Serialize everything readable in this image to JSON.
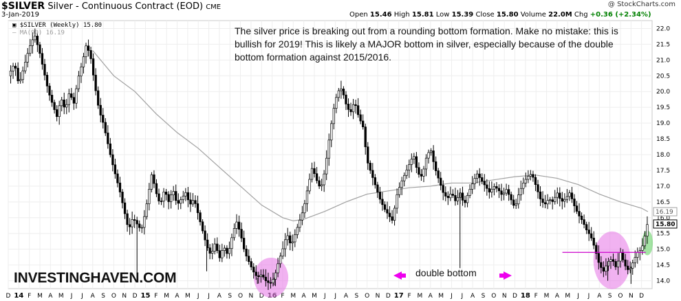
{
  "header": {
    "symbol": "$SILVER",
    "description": "Silver - Continuous Contract (EOD)",
    "exchange": "CME",
    "date": "3-Jan-2019",
    "credit": "@ StockCharts.com",
    "open_label": "Open",
    "open": "15.46",
    "high_label": "High",
    "high": "15.81",
    "low_label": "Low",
    "low": "15.39",
    "close_label": "Close",
    "close": "15.80",
    "volume_label": "Volume",
    "volume": "22.0M",
    "chg_label": "Chg",
    "chg": "+0.36 (+2.34%)"
  },
  "legend": {
    "price": "$SILVER (Weekly) 15.80",
    "ma": "MA(90) 16.19"
  },
  "annotation": "The silver price is breaking out from a rounding bottom formation. Make no mistake: this is bullish for 2019! This is likely a MAJOR bottom in silver, especially because of the double bottom formation against 2015/2016.",
  "double_bottom_label": "double bottom",
  "brand": "INVESTINGHAVEN.COM",
  "colors": {
    "candle": "#000000",
    "ma": "#a0a0a0",
    "highlight_magenta": "#e87ee8",
    "highlight_green": "#7ed87e",
    "arrow": "#ee00ee",
    "neckline": "#cc00cc"
  },
  "chart_data": {
    "type": "line",
    "frequency": "weekly",
    "ylim": [
      13.75,
      22.25
    ],
    "y_ticks": [
      "14.0",
      "14.5",
      "15.0",
      "15.5",
      "16.0",
      "16.5",
      "17.0",
      "17.5",
      "18.0",
      "18.5",
      "19.0",
      "19.5",
      "20.0",
      "20.5",
      "21.0",
      "21.5",
      "22.0"
    ],
    "last_price_label": "15.80",
    "ma_label": "16.19",
    "x_ticks": [
      {
        "label": "D",
        "t": 0
      },
      {
        "label": "14",
        "t": 1,
        "bold": true
      },
      {
        "label": "F",
        "t": 2
      },
      {
        "label": "M",
        "t": 3
      },
      {
        "label": "A",
        "t": 4
      },
      {
        "label": "M",
        "t": 5
      },
      {
        "label": "J",
        "t": 6
      },
      {
        "label": "J",
        "t": 7
      },
      {
        "label": "A",
        "t": 8
      },
      {
        "label": "S",
        "t": 9
      },
      {
        "label": "O",
        "t": 10
      },
      {
        "label": "N",
        "t": 11
      },
      {
        "label": "D",
        "t": 12
      },
      {
        "label": "15",
        "t": 13,
        "bold": true
      },
      {
        "label": "F",
        "t": 14
      },
      {
        "label": "M",
        "t": 15
      },
      {
        "label": "A",
        "t": 16
      },
      {
        "label": "M",
        "t": 17
      },
      {
        "label": "J",
        "t": 18
      },
      {
        "label": "J",
        "t": 19
      },
      {
        "label": "A",
        "t": 20
      },
      {
        "label": "S",
        "t": 21
      },
      {
        "label": "O",
        "t": 22
      },
      {
        "label": "N",
        "t": 23
      },
      {
        "label": "D",
        "t": 24
      },
      {
        "label": "16",
        "t": 25,
        "bold": true
      },
      {
        "label": "F",
        "t": 26
      },
      {
        "label": "M",
        "t": 27
      },
      {
        "label": "A",
        "t": 28
      },
      {
        "label": "M",
        "t": 29
      },
      {
        "label": "J",
        "t": 30
      },
      {
        "label": "J",
        "t": 31
      },
      {
        "label": "A",
        "t": 32
      },
      {
        "label": "S",
        "t": 33
      },
      {
        "label": "O",
        "t": 34
      },
      {
        "label": "N",
        "t": 35
      },
      {
        "label": "D",
        "t": 36
      },
      {
        "label": "17",
        "t": 37,
        "bold": true
      },
      {
        "label": "F",
        "t": 38
      },
      {
        "label": "M",
        "t": 39
      },
      {
        "label": "A",
        "t": 40
      },
      {
        "label": "M",
        "t": 41
      },
      {
        "label": "J",
        "t": 42
      },
      {
        "label": "J",
        "t": 43
      },
      {
        "label": "A",
        "t": 44
      },
      {
        "label": "S",
        "t": 45
      },
      {
        "label": "O",
        "t": 46
      },
      {
        "label": "N",
        "t": 47
      },
      {
        "label": "D",
        "t": 48
      },
      {
        "label": "18",
        "t": 49,
        "bold": true
      },
      {
        "label": "F",
        "t": 50
      },
      {
        "label": "M",
        "t": 51
      },
      {
        "label": "A",
        "t": 52
      },
      {
        "label": "M",
        "t": 53
      },
      {
        "label": "J",
        "t": 54
      },
      {
        "label": "J",
        "t": 55
      },
      {
        "label": "A",
        "t": 56
      },
      {
        "label": "S",
        "t": 57
      },
      {
        "label": "O",
        "t": 58
      },
      {
        "label": "N",
        "t": 59
      },
      {
        "label": "D",
        "t": 60
      }
    ],
    "price_path": [
      [
        0.0,
        20.5
      ],
      [
        0.6,
        20.9
      ],
      [
        1.0,
        20.2
      ],
      [
        1.5,
        20.8
      ],
      [
        2.0,
        21.4
      ],
      [
        2.5,
        21.8
      ],
      [
        3.0,
        21.2
      ],
      [
        3.4,
        20.6
      ],
      [
        3.8,
        20.0
      ],
      [
        4.2,
        19.6
      ],
      [
        4.6,
        19.2
      ],
      [
        5.0,
        19.8
      ],
      [
        5.4,
        19.4
      ],
      [
        5.8,
        20.0
      ],
      [
        6.2,
        19.6
      ],
      [
        6.6,
        20.4
      ],
      [
        7.0,
        20.9
      ],
      [
        7.4,
        21.5
      ],
      [
        7.8,
        21.1
      ],
      [
        8.2,
        20.2
      ],
      [
        8.6,
        19.4
      ],
      [
        9.0,
        19.0
      ],
      [
        9.4,
        18.4
      ],
      [
        9.8,
        17.8
      ],
      [
        10.2,
        17.3
      ],
      [
        10.6,
        16.8
      ],
      [
        11.0,
        16.2
      ],
      [
        11.4,
        15.6
      ],
      [
        11.8,
        16.0
      ],
      [
        12.2,
        15.8
      ],
      [
        12.6,
        15.6
      ],
      [
        13.0,
        16.2
      ],
      [
        13.4,
        17.0
      ],
      [
        13.6,
        17.4
      ],
      [
        14.0,
        16.8
      ],
      [
        14.4,
        16.4
      ],
      [
        14.8,
        16.9
      ],
      [
        15.2,
        16.5
      ],
      [
        15.6,
        16.9
      ],
      [
        16.0,
        16.4
      ],
      [
        16.4,
        16.6
      ],
      [
        16.8,
        16.8
      ],
      [
        17.2,
        16.4
      ],
      [
        17.6,
        16.6
      ],
      [
        18.0,
        16.1
      ],
      [
        18.4,
        15.6
      ],
      [
        18.8,
        15.1
      ],
      [
        19.2,
        14.8
      ],
      [
        19.6,
        15.2
      ],
      [
        20.0,
        14.7
      ],
      [
        20.4,
        15.1
      ],
      [
        20.8,
        14.8
      ],
      [
        21.2,
        15.4
      ],
      [
        21.6,
        15.9
      ],
      [
        22.0,
        15.5
      ],
      [
        22.4,
        14.9
      ],
      [
        22.8,
        14.6
      ],
      [
        23.2,
        14.3
      ],
      [
        23.6,
        14.1
      ],
      [
        24.0,
        14.2
      ],
      [
        24.4,
        14.0
      ],
      [
        24.8,
        13.9
      ],
      [
        25.2,
        14.1
      ],
      [
        25.6,
        14.6
      ],
      [
        26.0,
        15.0
      ],
      [
        26.4,
        15.5
      ],
      [
        26.8,
        15.1
      ],
      [
        27.2,
        15.5
      ],
      [
        27.6,
        15.9
      ],
      [
        28.0,
        16.3
      ],
      [
        28.4,
        17.0
      ],
      [
        28.8,
        17.6
      ],
      [
        29.2,
        17.2
      ],
      [
        29.6,
        16.9
      ],
      [
        30.0,
        17.5
      ],
      [
        30.4,
        18.5
      ],
      [
        30.8,
        19.4
      ],
      [
        31.2,
        20.0
      ],
      [
        31.6,
        20.1
      ],
      [
        32.0,
        19.6
      ],
      [
        32.4,
        19.3
      ],
      [
        32.8,
        19.7
      ],
      [
        33.2,
        19.2
      ],
      [
        33.6,
        18.9
      ],
      [
        34.0,
        17.8
      ],
      [
        34.4,
        17.4
      ],
      [
        34.8,
        17.0
      ],
      [
        35.2,
        16.6
      ],
      [
        35.6,
        16.3
      ],
      [
        36.0,
        16.1
      ],
      [
        36.4,
        15.9
      ],
      [
        36.8,
        16.7
      ],
      [
        37.2,
        17.1
      ],
      [
        37.6,
        17.4
      ],
      [
        38.0,
        17.7
      ],
      [
        38.4,
        18.0
      ],
      [
        38.8,
        17.4
      ],
      [
        39.2,
        17.3
      ],
      [
        39.6,
        17.9
      ],
      [
        40.0,
        18.2
      ],
      [
        40.4,
        17.6
      ],
      [
        40.8,
        17.2
      ],
      [
        41.2,
        16.8
      ],
      [
        41.6,
        16.6
      ],
      [
        42.0,
        16.8
      ],
      [
        42.4,
        16.5
      ],
      [
        42.8,
        16.8
      ],
      [
        43.2,
        16.4
      ],
      [
        43.6,
        16.8
      ],
      [
        44.0,
        17.1
      ],
      [
        44.4,
        17.4
      ],
      [
        44.8,
        17.2
      ],
      [
        45.2,
        17.0
      ],
      [
        45.6,
        16.8
      ],
      [
        46.0,
        17.0
      ],
      [
        46.4,
        16.9
      ],
      [
        46.8,
        16.7
      ],
      [
        47.2,
        16.9
      ],
      [
        47.6,
        16.6
      ],
      [
        48.0,
        16.3
      ],
      [
        48.4,
        16.8
      ],
      [
        48.8,
        17.1
      ],
      [
        49.2,
        17.3
      ],
      [
        49.6,
        17.4
      ],
      [
        50.0,
        17.0
      ],
      [
        50.4,
        16.6
      ],
      [
        50.8,
        16.4
      ],
      [
        51.2,
        16.6
      ],
      [
        51.6,
        16.5
      ],
      [
        52.0,
        16.8
      ],
      [
        52.4,
        16.5
      ],
      [
        52.8,
        16.6
      ],
      [
        53.2,
        16.8
      ],
      [
        53.6,
        16.4
      ],
      [
        54.0,
        16.1
      ],
      [
        54.4,
        15.9
      ],
      [
        54.8,
        15.6
      ],
      [
        55.2,
        15.4
      ],
      [
        55.6,
        15.0
      ],
      [
        56.0,
        14.5
      ],
      [
        56.4,
        14.3
      ],
      [
        56.8,
        14.6
      ],
      [
        57.2,
        14.7
      ],
      [
        57.6,
        14.4
      ],
      [
        58.0,
        14.9
      ],
      [
        58.4,
        14.5
      ],
      [
        58.8,
        14.3
      ],
      [
        59.2,
        14.6
      ],
      [
        59.6,
        14.9
      ],
      [
        60.0,
        15.0
      ],
      [
        60.3,
        15.4
      ],
      [
        60.55,
        15.8
      ]
    ],
    "spikes_low": [
      {
        "t": 12.2,
        "v": 14.1
      },
      {
        "t": 18.8,
        "v": 14.3
      },
      {
        "t": 23.6,
        "v": 13.9
      },
      {
        "t": 25.2,
        "v": 13.85
      },
      {
        "t": 42.8,
        "v": 14.4
      },
      {
        "t": 56.8,
        "v": 14.0
      },
      {
        "t": 59.0,
        "v": 13.9
      }
    ],
    "ma90": [
      [
        8,
        21.3
      ],
      [
        10,
        20.5
      ],
      [
        12,
        20.0
      ],
      [
        14,
        19.3
      ],
      [
        16,
        18.7
      ],
      [
        18,
        18.2
      ],
      [
        20,
        17.6
      ],
      [
        22,
        17.0
      ],
      [
        24,
        16.4
      ],
      [
        26,
        16.0
      ],
      [
        27,
        15.9
      ],
      [
        28,
        15.95
      ],
      [
        30,
        16.2
      ],
      [
        32,
        16.5
      ],
      [
        34,
        16.75
      ],
      [
        36,
        16.85
      ],
      [
        38,
        16.95
      ],
      [
        40,
        17.0
      ],
      [
        42,
        17.1
      ],
      [
        44,
        17.1
      ],
      [
        46,
        17.2
      ],
      [
        48,
        17.3
      ],
      [
        50,
        17.35
      ],
      [
        52,
        17.25
      ],
      [
        54,
        17.05
      ],
      [
        56,
        16.75
      ],
      [
        58,
        16.5
      ],
      [
        60,
        16.3
      ],
      [
        60.6,
        16.19
      ]
    ],
    "neckline_value": 14.9,
    "neckline_t": [
      52.5,
      60.4
    ]
  }
}
